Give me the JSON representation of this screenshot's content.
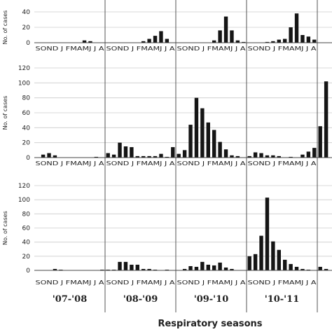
{
  "chart_data": {
    "type": "bar",
    "layout": "3 rows of panels x 4 respiratory seasons (rightmost panels cropped)",
    "x_title": "Respiratory seasons",
    "season_labels": [
      "'07-'08",
      "'08-'09",
      "'09-'10",
      "'10-'11"
    ],
    "months": [
      "S",
      "O",
      "N",
      "D",
      "J",
      "F",
      "M",
      "A",
      "M",
      "J",
      "J",
      "A"
    ],
    "month_label_strings": [
      "SOND J FMAMJ J A",
      "SOND J FMAMJ J A",
      "SOND J FMAMJ J A",
      "SOND J FMAMJ J A"
    ],
    "rows": [
      {
        "ylabel": "No. of cases",
        "ylim": [
          0,
          40
        ],
        "yticks": [
          0,
          20,
          40
        ],
        "seasons": [
          [
            0,
            0,
            0,
            0,
            0,
            0,
            0,
            0,
            3,
            2,
            0,
            0
          ],
          [
            0,
            0,
            0,
            0,
            0,
            0,
            2,
            5,
            9,
            15,
            5,
            0
          ],
          [
            0,
            0,
            0,
            0,
            0,
            0,
            3,
            16,
            34,
            16,
            3,
            1
          ],
          [
            0,
            0,
            0,
            1,
            2,
            4,
            5,
            20,
            38,
            10,
            8,
            4
          ]
        ]
      },
      {
        "ylabel": "No. of cases",
        "ylim": [
          0,
          120
        ],
        "yticks": [
          0,
          20,
          40,
          60,
          80,
          100,
          120
        ],
        "seasons": [
          [
            0,
            4,
            6,
            3,
            0,
            0,
            0,
            0,
            0,
            0,
            1,
            0
          ],
          [
            6,
            4,
            20,
            15,
            14,
            2,
            2,
            2,
            2,
            5,
            1,
            14
          ],
          [
            5,
            10,
            44,
            80,
            66,
            47,
            37,
            21,
            11,
            3,
            2,
            0
          ],
          [
            2,
            7,
            6,
            3,
            3,
            2,
            0,
            1,
            0,
            4,
            8,
            13
          ]
        ],
        "cropped_extra_values": [
          42,
          102
        ]
      },
      {
        "ylabel": "No. of cases",
        "ylim": [
          0,
          120
        ],
        "yticks": [
          0,
          20,
          40,
          60,
          80,
          100,
          120
        ],
        "seasons": [
          [
            0,
            0,
            0,
            2,
            1,
            0,
            0,
            0,
            0,
            0,
            0,
            1
          ],
          [
            1,
            1,
            12,
            12,
            8,
            8,
            2,
            2,
            1,
            0,
            1,
            0
          ],
          [
            0,
            2,
            6,
            5,
            12,
            8,
            7,
            11,
            4,
            2,
            0,
            0
          ],
          [
            20,
            23,
            49,
            103,
            41,
            29,
            15,
            9,
            5,
            2,
            1,
            0
          ]
        ],
        "cropped_extra_values": [
          5,
          2
        ]
      }
    ]
  }
}
